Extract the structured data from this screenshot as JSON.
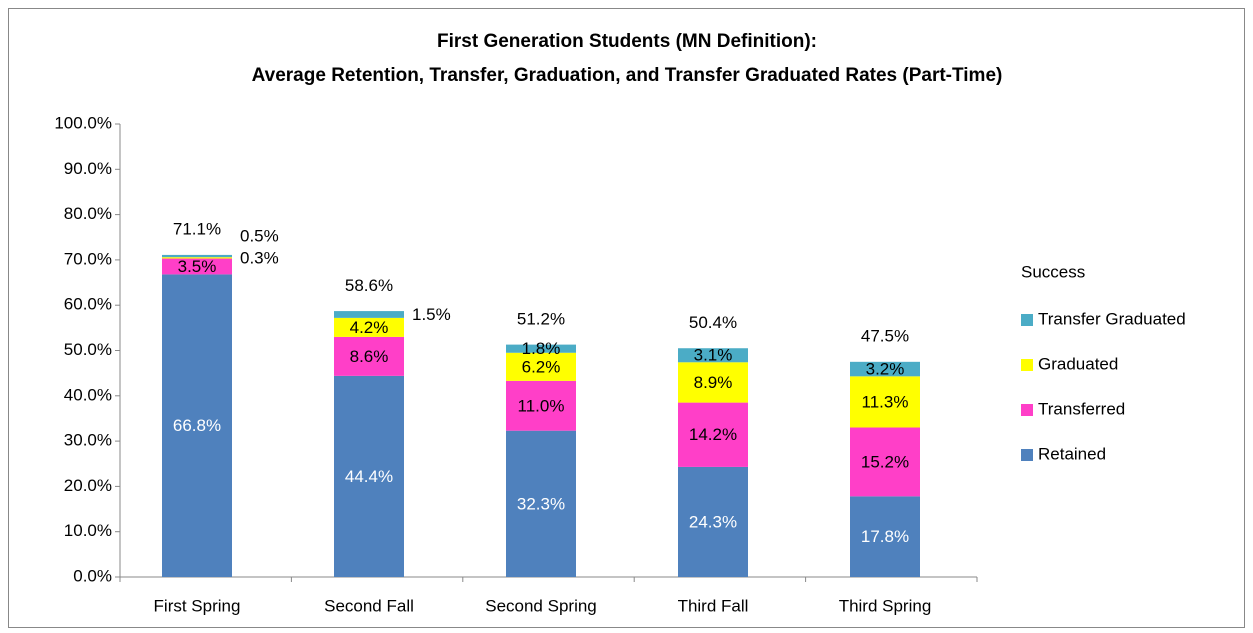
{
  "chart_data": {
    "type": "stacked_bar",
    "title": [
      "First Generation Students (MN Definition):",
      "Average Retention, Transfer, Graduation, and Transfer Graduated Rates (Part-Time)"
    ],
    "categories": [
      "First Spring",
      "Second Fall",
      "Second Spring",
      "Third Fall",
      "Third Spring"
    ],
    "series": [
      {
        "name": "Retained",
        "color": "#4f81bd",
        "values": [
          66.8,
          44.4,
          32.3,
          24.3,
          17.8
        ],
        "value_labels": [
          "66.8%",
          "44.4%",
          "32.3%",
          "24.3%",
          "17.8%"
        ]
      },
      {
        "name": "Transferred",
        "color": "#ff3fc8",
        "values": [
          3.5,
          8.6,
          11.0,
          14.2,
          15.2
        ],
        "value_labels": [
          "3.5%",
          "8.6%",
          "11.0%",
          "14.2%",
          "15.2%"
        ]
      },
      {
        "name": "Graduated",
        "color": "#ffff00",
        "values": [
          0.3,
          4.2,
          6.2,
          8.9,
          11.3
        ],
        "value_labels": [
          "0.3%",
          "4.2%",
          "6.2%",
          "8.9%",
          "11.3%"
        ]
      },
      {
        "name": "Transfer Graduated",
        "color": "#4bacc6",
        "values": [
          0.5,
          1.5,
          1.8,
          3.1,
          3.2
        ],
        "value_labels": [
          "0.5%",
          "1.5%",
          "1.8%",
          "3.1%",
          "3.2%"
        ]
      }
    ],
    "totals": [
      71.1,
      58.6,
      51.2,
      50.4,
      47.5
    ],
    "total_labels": [
      "71.1%",
      "58.6%",
      "51.2%",
      "50.4%",
      "47.5%"
    ],
    "ylim": [
      0,
      100
    ],
    "yticks": [
      {
        "value": 0,
        "label": "0.0%"
      },
      {
        "value": 10,
        "label": "10.0%"
      },
      {
        "value": 20,
        "label": "20.0%"
      },
      {
        "value": 30,
        "label": "30.0%"
      },
      {
        "value": 40,
        "label": "40.0%"
      },
      {
        "value": 50,
        "label": "50.0%"
      },
      {
        "value": 60,
        "label": "60.0%"
      },
      {
        "value": 70,
        "label": "70.0%"
      },
      {
        "value": 80,
        "label": "80.0%"
      },
      {
        "value": 90,
        "label": "90.0%"
      },
      {
        "value": 100,
        "label": "100.0%"
      }
    ],
    "legend_title": "Success",
    "legend": "right",
    "grid": false
  }
}
